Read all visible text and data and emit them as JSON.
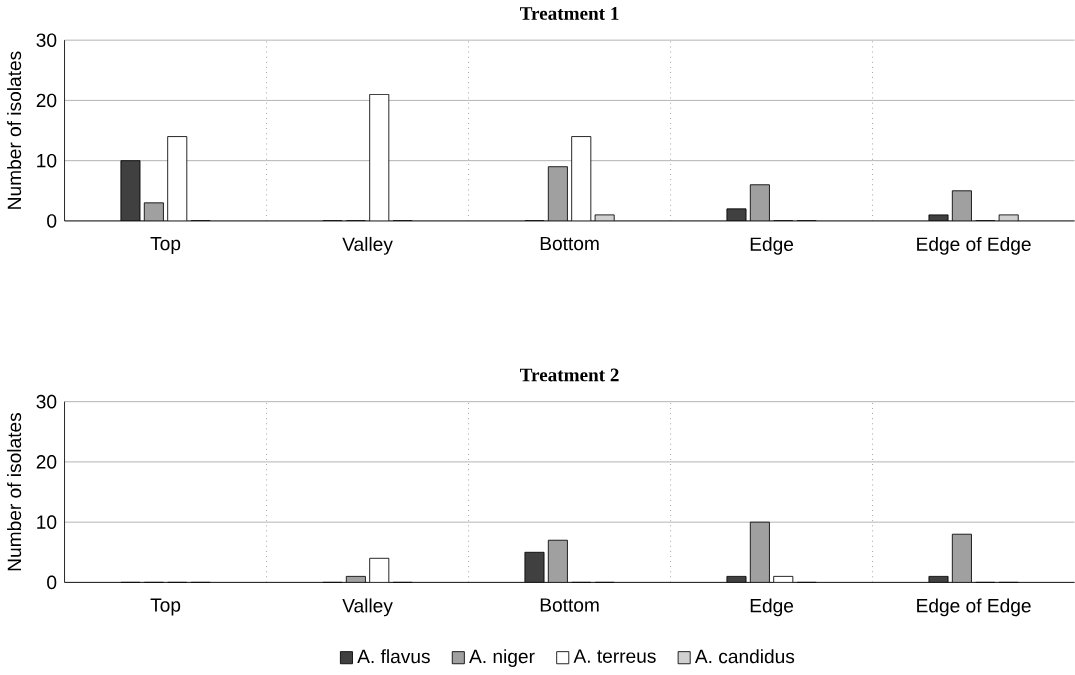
{
  "chart_data": [
    {
      "type": "bar",
      "title": "Treatment 1",
      "ylabel": "Number of isolates",
      "categories": [
        "Top",
        "Valley",
        "Bottom",
        "Edge",
        "Edge of Edge"
      ],
      "series": [
        {
          "color": "#404040",
          "values": [
            10,
            0,
            0,
            2,
            1
          ]
        },
        {
          "color": "#a0a0a0",
          "values": [
            3,
            0,
            9,
            6,
            5
          ]
        },
        {
          "color": "#ffffff",
          "values": [
            14,
            21,
            14,
            0,
            0
          ]
        },
        {
          "color": "#d0d0d0",
          "values": [
            0,
            0,
            1,
            0,
            1
          ]
        }
      ],
      "ylim": [
        0,
        30
      ],
      "yticks": [
        0,
        10,
        20,
        30
      ],
      "grid": true,
      "legend": false
    },
    {
      "type": "bar",
      "title": "Treatment 2",
      "ylabel": "Number of isolates",
      "categories": [
        "Top",
        "Valley",
        "Bottom",
        "Edge",
        "Edge of Edge"
      ],
      "series": [
        {
          "name": "A. flavus",
          "color": "#404040",
          "values": [
            0,
            0,
            5,
            1,
            1
          ]
        },
        {
          "name": "A. niger",
          "color": "#a0a0a0",
          "values": [
            0,
            1,
            7,
            10,
            8
          ]
        },
        {
          "name": "A. terreus",
          "color": "#ffffff",
          "values": [
            0,
            4,
            0,
            1,
            0
          ]
        },
        {
          "name": "A. candidus",
          "color": "#d0d0d0",
          "values": [
            0,
            0,
            0,
            0,
            0
          ]
        }
      ],
      "ylim": [
        0,
        30
      ],
      "yticks": [
        0,
        10,
        20,
        30
      ],
      "grid": true,
      "legend": "bottom"
    }
  ]
}
